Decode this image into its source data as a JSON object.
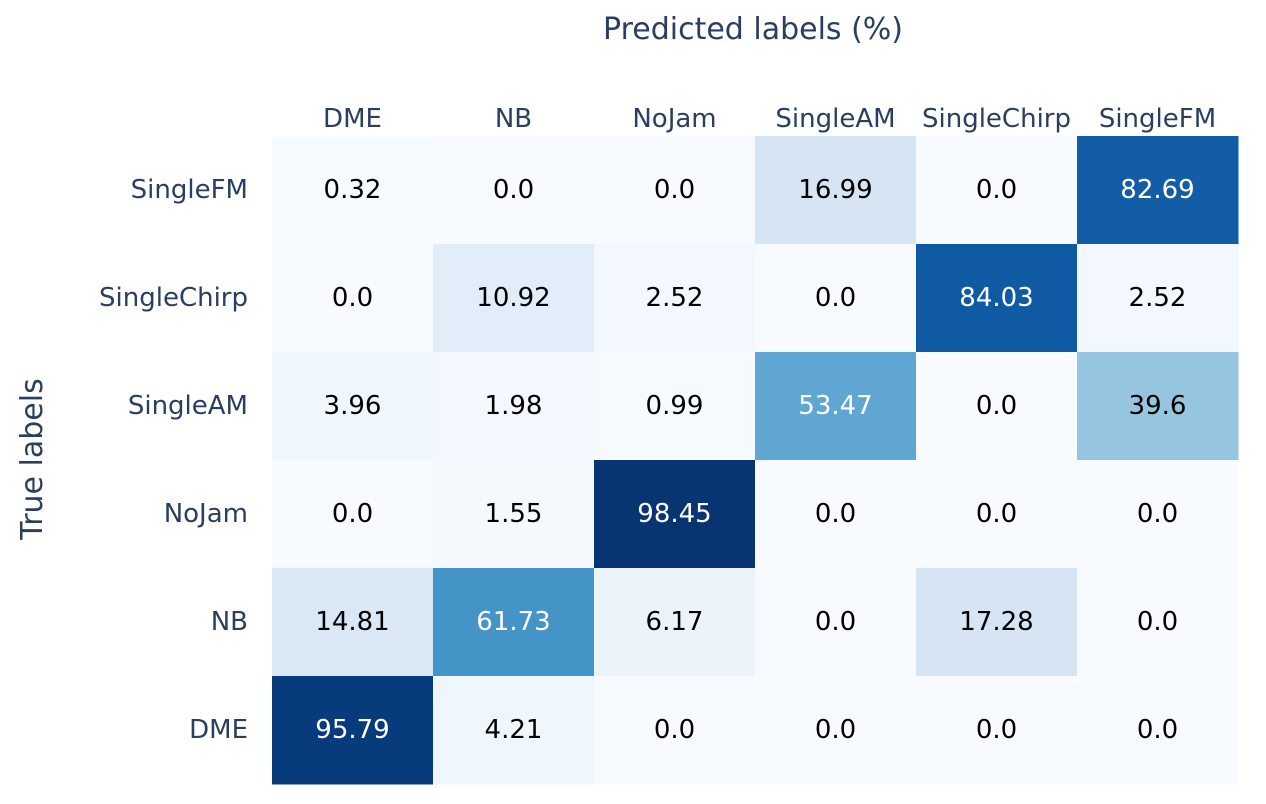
{
  "chart_data": {
    "type": "heatmap",
    "title": "",
    "xlabel": "Predicted labels (%)",
    "ylabel": "True labels",
    "x_categories": [
      "DME",
      "NB",
      "NoJam",
      "SingleAM",
      "SingleChirp",
      "SingleFM"
    ],
    "y_categories": [
      "SingleFM",
      "SingleChirp",
      "SingleAM",
      "NoJam",
      "NB",
      "DME"
    ],
    "x_axis_position": "top",
    "colorscale": "Blues",
    "zrange": [
      0,
      100
    ],
    "show_colorbar": false,
    "values": [
      [
        0.32,
        0.0,
        0.0,
        16.99,
        0.0,
        82.69
      ],
      [
        0.0,
        10.92,
        2.52,
        0.0,
        84.03,
        2.52
      ],
      [
        3.96,
        1.98,
        0.99,
        53.47,
        0.0,
        39.6
      ],
      [
        0.0,
        1.55,
        98.45,
        0.0,
        0.0,
        0.0
      ],
      [
        14.81,
        61.73,
        6.17,
        0.0,
        17.28,
        0.0
      ],
      [
        95.79,
        4.21,
        0.0,
        0.0,
        0.0,
        0.0
      ]
    ],
    "cell_labels": [
      [
        "0.32",
        "0.0",
        "0.0",
        "16.99",
        "0.0",
        "82.69"
      ],
      [
        "0.0",
        "10.92",
        "2.52",
        "0.0",
        "84.03",
        "2.52"
      ],
      [
        "3.96",
        "1.98",
        "0.99",
        "53.47",
        "0.0",
        "39.6"
      ],
      [
        "0.0",
        "1.55",
        "98.45",
        "0.0",
        "0.0",
        "0.0"
      ],
      [
        "14.81",
        "61.73",
        "6.17",
        "0.0",
        "17.28",
        "0.0"
      ],
      [
        "95.79",
        "4.21",
        "0.0",
        "0.0",
        "0.0",
        "0.0"
      ]
    ]
  }
}
